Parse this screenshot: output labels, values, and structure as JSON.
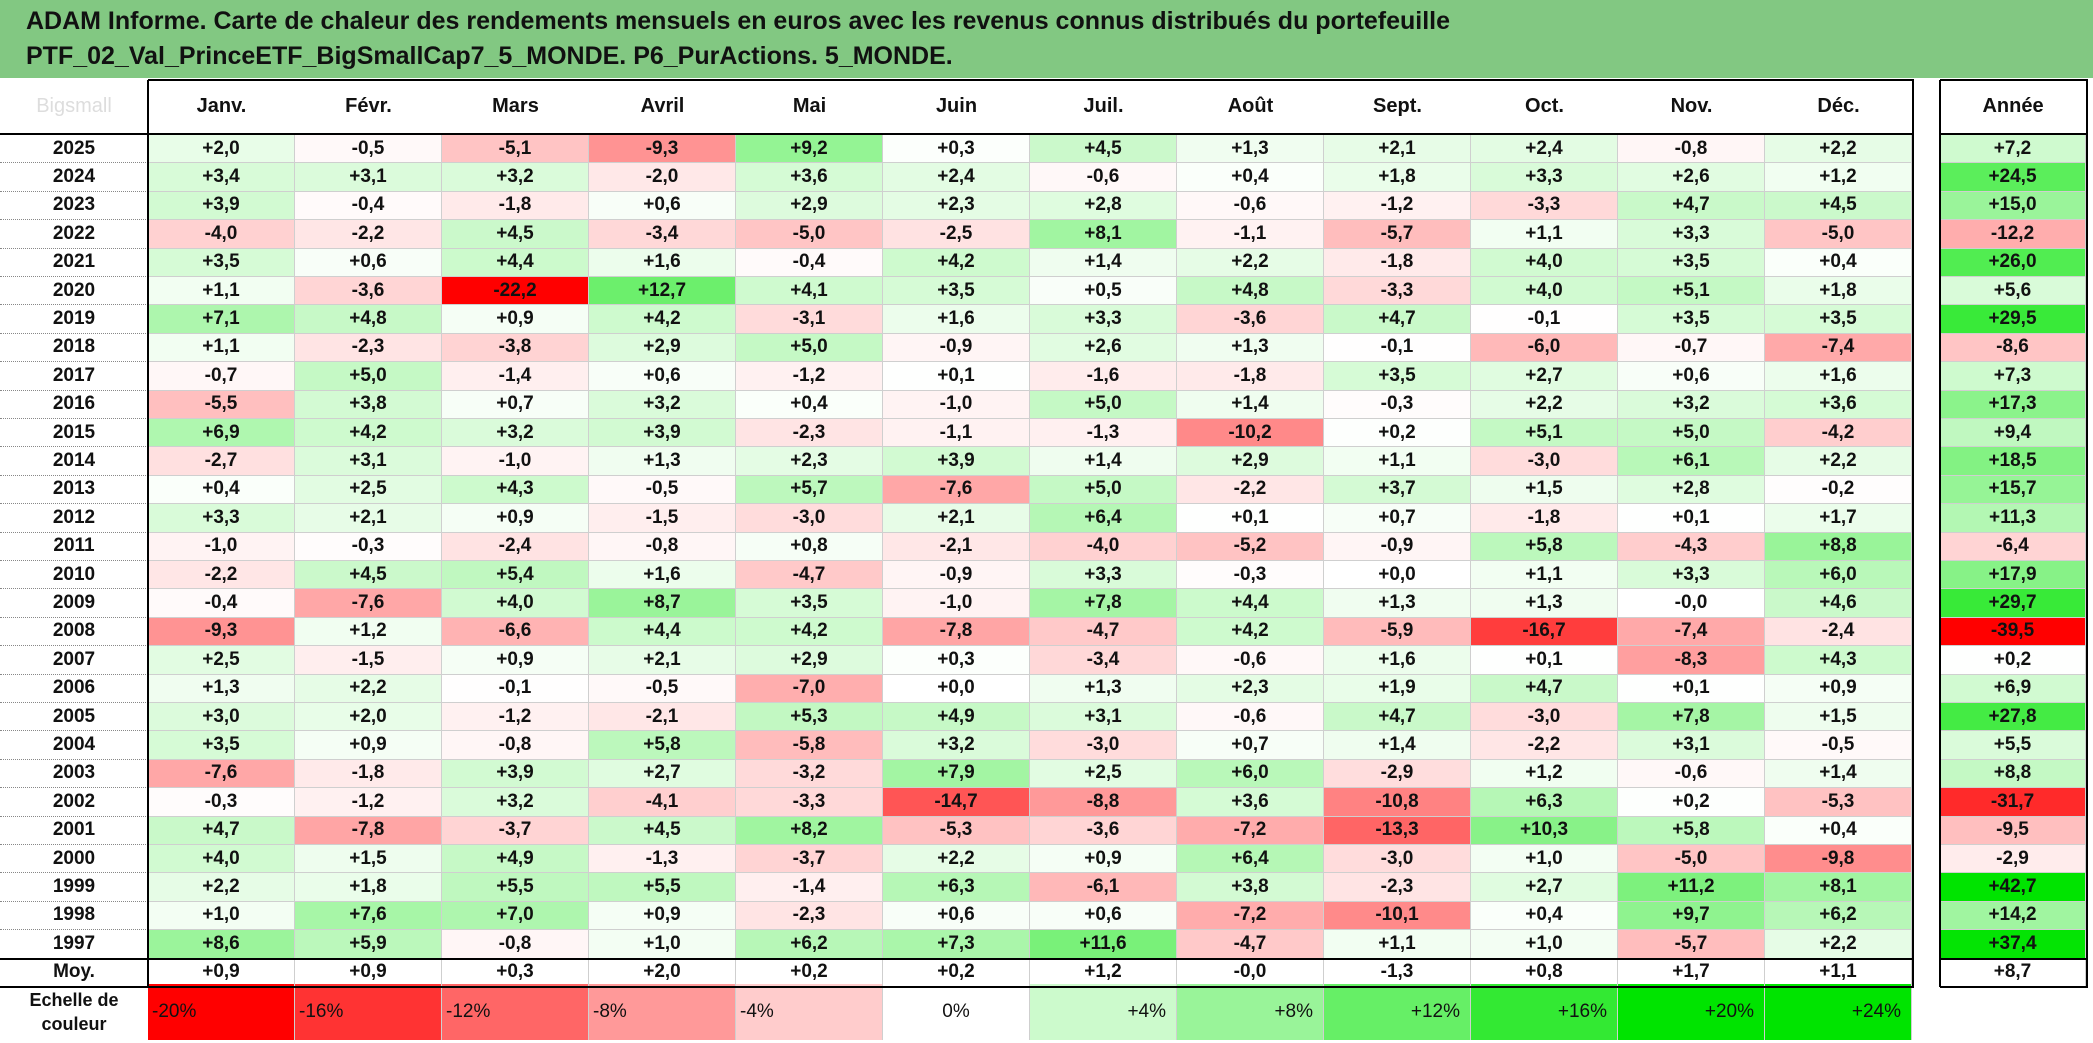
{
  "title": {
    "line1": "ADAM Informe. Carte de chaleur des rendements mensuels en euros avec les revenus connus distribués du portefeuille",
    "line2": "PTF_02_Val_PrinceETF_BigSmallCap7_5_MONDE. P6_PurActions. 5_MONDE."
  },
  "corner_label": "Bigsmall",
  "colors": {
    "title_band": "#82c882",
    "negative_max": "#ff0000",
    "positive_max": "#00e400",
    "neutral": "#ffffff"
  },
  "chart_data": {
    "type": "heatmap",
    "columns": [
      "Janv.",
      "Févr.",
      "Mars",
      "Avril",
      "Mai",
      "Juin",
      "Juil.",
      "Août",
      "Sept.",
      "Oct.",
      "Nov.",
      "Déc."
    ],
    "annual_header": "Année",
    "rows": [
      {
        "label": "2025",
        "values": [
          "+2,0",
          "-0,5",
          "-5,1",
          "-9,3",
          "+9,2",
          "+0,3",
          "+4,5",
          "+1,3",
          "+2,1",
          "+2,4",
          "-0,8",
          "+2,2"
        ],
        "annual": "+7,2"
      },
      {
        "label": "2024",
        "values": [
          "+3,4",
          "+3,1",
          "+3,2",
          "-2,0",
          "+3,6",
          "+2,4",
          "-0,6",
          "+0,4",
          "+1,8",
          "+3,3",
          "+2,6",
          "+1,2"
        ],
        "annual": "+24,5"
      },
      {
        "label": "2023",
        "values": [
          "+3,9",
          "-0,4",
          "-1,8",
          "+0,6",
          "+2,9",
          "+2,3",
          "+2,8",
          "-0,6",
          "-1,2",
          "-3,3",
          "+4,7",
          "+4,5"
        ],
        "annual": "+15,0"
      },
      {
        "label": "2022",
        "values": [
          "-4,0",
          "-2,2",
          "+4,5",
          "-3,4",
          "-5,0",
          "-2,5",
          "+8,1",
          "-1,1",
          "-5,7",
          "+1,1",
          "+3,3",
          "-5,0"
        ],
        "annual": "-12,2"
      },
      {
        "label": "2021",
        "values": [
          "+3,5",
          "+0,6",
          "+4,4",
          "+1,6",
          "-0,4",
          "+4,2",
          "+1,4",
          "+2,2",
          "-1,8",
          "+4,0",
          "+3,5",
          "+0,4"
        ],
        "annual": "+26,0"
      },
      {
        "label": "2020",
        "values": [
          "+1,1",
          "-3,6",
          "-22,2",
          "+12,7",
          "+4,1",
          "+3,5",
          "+0,5",
          "+4,8",
          "-3,3",
          "+4,0",
          "+5,1",
          "+1,8"
        ],
        "annual": "+5,6"
      },
      {
        "label": "2019",
        "values": [
          "+7,1",
          "+4,8",
          "+0,9",
          "+4,2",
          "-3,1",
          "+1,6",
          "+3,3",
          "-3,6",
          "+4,7",
          "-0,1",
          "+3,5",
          "+3,5"
        ],
        "annual": "+29,5"
      },
      {
        "label": "2018",
        "values": [
          "+1,1",
          "-2,3",
          "-3,8",
          "+2,9",
          "+5,0",
          "-0,9",
          "+2,6",
          "+1,3",
          "-0,1",
          "-6,0",
          "-0,7",
          "-7,4"
        ],
        "annual": "-8,6"
      },
      {
        "label": "2017",
        "values": [
          "-0,7",
          "+5,0",
          "-1,4",
          "+0,6",
          "-1,2",
          "+0,1",
          "-1,6",
          "-1,8",
          "+3,5",
          "+2,7",
          "+0,6",
          "+1,6"
        ],
        "annual": "+7,3"
      },
      {
        "label": "2016",
        "values": [
          "-5,5",
          "+3,8",
          "+0,7",
          "+3,2",
          "+0,4",
          "-1,0",
          "+5,0",
          "+1,4",
          "-0,3",
          "+2,2",
          "+3,2",
          "+3,6"
        ],
        "annual": "+17,3"
      },
      {
        "label": "2015",
        "values": [
          "+6,9",
          "+4,2",
          "+3,2",
          "+3,9",
          "-2,3",
          "-1,1",
          "-1,3",
          "-10,2",
          "+0,2",
          "+5,1",
          "+5,0",
          "-4,2"
        ],
        "annual": "+9,4"
      },
      {
        "label": "2014",
        "values": [
          "-2,7",
          "+3,1",
          "-1,0",
          "+1,3",
          "+2,3",
          "+3,9",
          "+1,4",
          "+2,9",
          "+1,1",
          "-3,0",
          "+6,1",
          "+2,2"
        ],
        "annual": "+18,5"
      },
      {
        "label": "2013",
        "values": [
          "+0,4",
          "+2,5",
          "+4,3",
          "-0,5",
          "+5,7",
          "-7,6",
          "+5,0",
          "-2,2",
          "+3,7",
          "+1,5",
          "+2,8",
          "-0,2"
        ],
        "annual": "+15,7"
      },
      {
        "label": "2012",
        "values": [
          "+3,3",
          "+2,1",
          "+0,9",
          "-1,5",
          "-3,0",
          "+2,1",
          "+6,4",
          "+0,1",
          "+0,7",
          "-1,8",
          "+0,1",
          "+1,7"
        ],
        "annual": "+11,3"
      },
      {
        "label": "2011",
        "values": [
          "-1,0",
          "-0,3",
          "-2,4",
          "-0,8",
          "+0,8",
          "-2,1",
          "-4,0",
          "-5,2",
          "-0,9",
          "+5,8",
          "-4,3",
          "+8,8"
        ],
        "annual": "-6,4"
      },
      {
        "label": "2010",
        "values": [
          "-2,2",
          "+4,5",
          "+5,4",
          "+1,6",
          "-4,7",
          "-0,9",
          "+3,3",
          "-0,3",
          "+0,0",
          "+1,1",
          "+3,3",
          "+6,0"
        ],
        "annual": "+17,9"
      },
      {
        "label": "2009",
        "values": [
          "-0,4",
          "-7,6",
          "+4,0",
          "+8,7",
          "+3,5",
          "-1,0",
          "+7,8",
          "+4,4",
          "+1,3",
          "+1,3",
          "-0,0",
          "+4,6"
        ],
        "annual": "+29,7"
      },
      {
        "label": "2008",
        "values": [
          "-9,3",
          "+1,2",
          "-6,6",
          "+4,4",
          "+4,2",
          "-7,8",
          "-4,7",
          "+4,2",
          "-5,9",
          "-16,7",
          "-7,4",
          "-2,4"
        ],
        "annual": "-39,5"
      },
      {
        "label": "2007",
        "values": [
          "+2,5",
          "-1,5",
          "+0,9",
          "+2,1",
          "+2,9",
          "+0,3",
          "-3,4",
          "-0,6",
          "+1,6",
          "+0,1",
          "-8,3",
          "+4,3"
        ],
        "annual": "+0,2"
      },
      {
        "label": "2006",
        "values": [
          "+1,3",
          "+2,2",
          "-0,1",
          "-0,5",
          "-7,0",
          "+0,0",
          "+1,3",
          "+2,3",
          "+1,9",
          "+4,7",
          "+0,1",
          "+0,9"
        ],
        "annual": "+6,9"
      },
      {
        "label": "2005",
        "values": [
          "+3,0",
          "+2,0",
          "-1,2",
          "-2,1",
          "+5,3",
          "+4,9",
          "+3,1",
          "-0,6",
          "+4,7",
          "-3,0",
          "+7,8",
          "+1,5"
        ],
        "annual": "+27,8"
      },
      {
        "label": "2004",
        "values": [
          "+3,5",
          "+0,9",
          "-0,8",
          "+5,8",
          "-5,8",
          "+3,2",
          "-3,0",
          "+0,7",
          "+1,4",
          "-2,2",
          "+3,1",
          "-0,5"
        ],
        "annual": "+5,5"
      },
      {
        "label": "2003",
        "values": [
          "-7,6",
          "-1,8",
          "+3,9",
          "+2,7",
          "-3,2",
          "+7,9",
          "+2,5",
          "+6,0",
          "-2,9",
          "+1,2",
          "-0,6",
          "+1,4"
        ],
        "annual": "+8,8"
      },
      {
        "label": "2002",
        "values": [
          "-0,3",
          "-1,2",
          "+3,2",
          "-4,1",
          "-3,3",
          "-14,7",
          "-8,8",
          "+3,6",
          "-10,8",
          "+6,3",
          "+0,2",
          "-5,3"
        ],
        "annual": "-31,7"
      },
      {
        "label": "2001",
        "values": [
          "+4,7",
          "-7,8",
          "-3,7",
          "+4,5",
          "+8,2",
          "-5,3",
          "-3,6",
          "-7,2",
          "-13,3",
          "+10,3",
          "+5,8",
          "+0,4"
        ],
        "annual": "-9,5"
      },
      {
        "label": "2000",
        "values": [
          "+4,0",
          "+1,5",
          "+4,9",
          "-1,3",
          "-3,7",
          "+2,2",
          "+0,9",
          "+6,4",
          "-3,0",
          "+1,0",
          "-5,0",
          "-9,8"
        ],
        "annual": "-2,9"
      },
      {
        "label": "1999",
        "values": [
          "+2,2",
          "+1,8",
          "+5,5",
          "+5,5",
          "-1,4",
          "+6,3",
          "-6,1",
          "+3,8",
          "-2,3",
          "+2,7",
          "+11,2",
          "+8,1"
        ],
        "annual": "+42,7"
      },
      {
        "label": "1998",
        "values": [
          "+1,0",
          "+7,6",
          "+7,0",
          "+0,9",
          "-2,3",
          "+0,6",
          "+0,6",
          "-7,2",
          "-10,1",
          "+0,4",
          "+9,7",
          "+6,2"
        ],
        "annual": "+14,2"
      },
      {
        "label": "1997",
        "values": [
          "+8,6",
          "+5,9",
          "-0,8",
          "+1,0",
          "+6,2",
          "+7,3",
          "+11,6",
          "-4,7",
          "+1,1",
          "+1,0",
          "-5,7",
          "+2,2"
        ],
        "annual": "+37,4"
      }
    ],
    "average": {
      "label": "Moy.",
      "values": [
        "+0,9",
        "+0,9",
        "+0,3",
        "+2,0",
        "+0,2",
        "+0,2",
        "+1,2",
        "-0,0",
        "-1,3",
        "+0,8",
        "+1,7",
        "+1,1"
      ],
      "annual": "+8,7"
    },
    "legend": {
      "title_line1": "Echelle de",
      "title_line2": "couleur",
      "items": [
        {
          "label": "-20%",
          "value": -20
        },
        {
          "label": "-16%",
          "value": -16
        },
        {
          "label": "-12%",
          "value": -12
        },
        {
          "label": "-8%",
          "value": -8
        },
        {
          "label": "-4%",
          "value": -4
        },
        {
          "label": "0%",
          "value": 0
        },
        {
          "label": "+4%",
          "value": 4
        },
        {
          "label": "+8%",
          "value": 8
        },
        {
          "label": "+12%",
          "value": 12
        },
        {
          "label": "+16%",
          "value": 16
        },
        {
          "label": "+20%",
          "value": 20
        },
        {
          "label": "+24%",
          "value": 24
        }
      ]
    }
  }
}
